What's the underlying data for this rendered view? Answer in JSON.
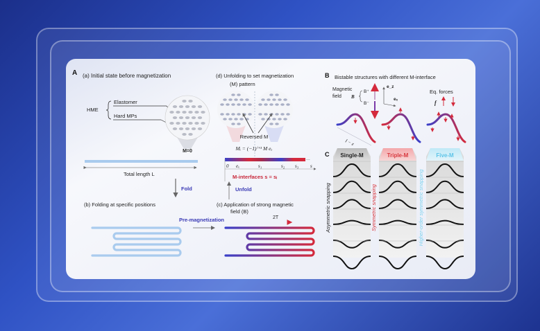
{
  "panel_a": {
    "label": "A",
    "step_a": "(a) Initial state before magnetization",
    "hme": "HME",
    "elastomer": "Elastomer",
    "hard_mps": "Hard MPs",
    "m_zero": "M=0",
    "total_length": "Total length L",
    "fold": "Fold",
    "step_b": "(b) Folding at specific positions",
    "pre_magnetization": "Pre-magnetization",
    "step_c_line1": "(c) Application of strong magnetic",
    "step_c_line2": "field (B)",
    "field_strength": "2T",
    "unfold": "Unfold",
    "step_d_line1": "(d) Unfolding to set magnetization",
    "step_d_line2": "(M) pattern",
    "reversed_m": "Reversed M",
    "formula": "Mᵢ = (−1)ⁱ⁺¹ M eₓ",
    "axis_labels": [
      "0",
      "eₓ",
      "s₁",
      "s₂",
      "s₃",
      "s"
    ],
    "ellipsis": "...",
    "m_interfaces": "M-interfaces s = sᵢ"
  },
  "panel_b": {
    "label": "B",
    "title": "Bistable structures with different M-interface",
    "magnetic": "Magnetic",
    "field": "field",
    "b": "B",
    "b_plus": "B⁺",
    "b_minus": "B⁻",
    "ez": "e_z",
    "ex": "eₓ",
    "eq_forces": "Eq. forces",
    "f": "f",
    "l_eps": "l − ε"
  },
  "panel_c": {
    "label": "C",
    "columns": [
      {
        "header": "Single-M",
        "side_label": "Asymmetric snapping",
        "color": "#222222"
      },
      {
        "header": "Triple-M",
        "side_label": "Symmetric snapping",
        "color": "#d8373d"
      },
      {
        "header": "Five-M",
        "side_label": "Higher-order symmetric snapping",
        "color": "#7fd3ef"
      }
    ]
  },
  "colors": {
    "red": "#d42a3c",
    "blue": "#3a3fc8",
    "light_blue": "#a9cbee",
    "background": "#2f52c4"
  }
}
